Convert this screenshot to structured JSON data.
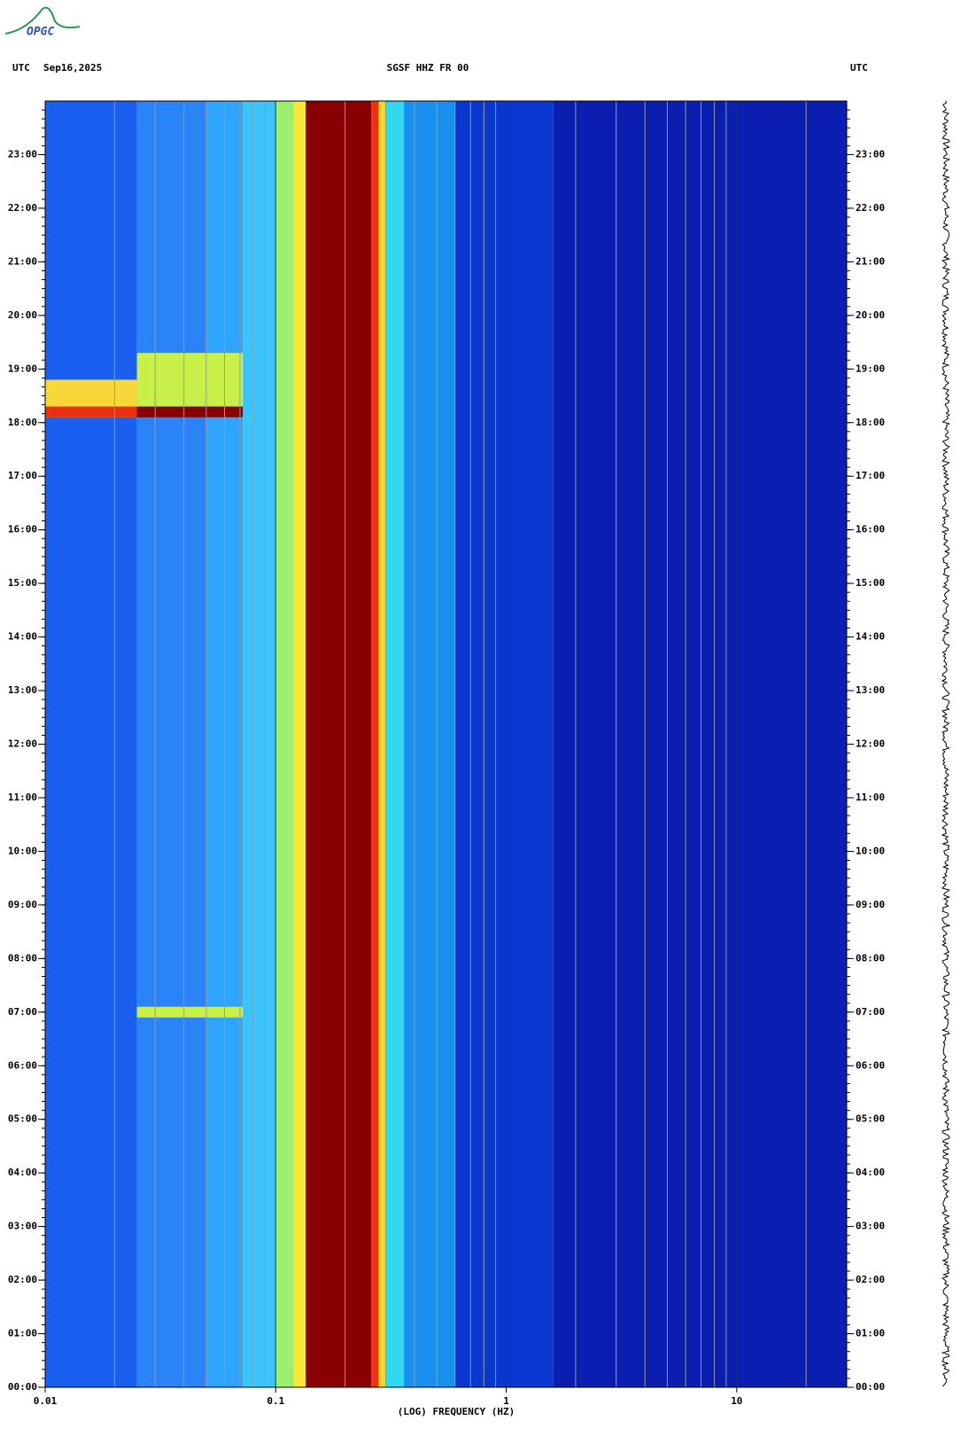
{
  "logo": "OPGC",
  "chart_data": {
    "type": "spectrogram",
    "title": "SGSF HHZ FR 00",
    "timezone_left": "UTC",
    "date": "Sep16,2025",
    "timezone_right": "UTC",
    "xlabel": "(LOG) FREQUENCY (HZ)",
    "xscale": "log",
    "xlim": [
      0.01,
      30
    ],
    "xticks": [
      {
        "value": 0.01,
        "label": "0.01"
      },
      {
        "value": 0.1,
        "label": "0.1"
      },
      1,
      10
    ],
    "ylim": [
      0,
      24
    ],
    "yticks": [
      {
        "value": 0,
        "label": "00:00"
      },
      {
        "value": 1,
        "label": "01:00"
      },
      {
        "value": 2,
        "label": "02:00"
      },
      {
        "value": 3,
        "label": "03:00"
      },
      {
        "value": 4,
        "label": "04:00"
      },
      {
        "value": 5,
        "label": "05:00"
      },
      {
        "value": 6,
        "label": "06:00"
      },
      {
        "value": 7,
        "label": "07:00"
      },
      {
        "value": 8,
        "label": "08:00"
      },
      {
        "value": 9,
        "label": "09:00"
      },
      {
        "value": 10,
        "label": "10:00"
      },
      {
        "value": 11,
        "label": "11:00"
      },
      {
        "value": 12,
        "label": "12:00"
      },
      {
        "value": 13,
        "label": "13:00"
      },
      {
        "value": 14,
        "label": "14:00"
      },
      {
        "value": 15,
        "label": "15:00"
      },
      {
        "value": 16,
        "label": "16:00"
      },
      {
        "value": 17,
        "label": "17:00"
      },
      {
        "value": 18,
        "label": "18:00"
      },
      {
        "value": 19,
        "label": "19:00"
      },
      {
        "value": 20,
        "label": "20:00"
      },
      {
        "value": 21,
        "label": "21:00"
      },
      {
        "value": 22,
        "label": "22:00"
      },
      {
        "value": 23,
        "label": "23:00"
      }
    ],
    "bands": [
      {
        "from": 0.01,
        "to": 0.025,
        "color": "#1a60f0"
      },
      {
        "from": 0.025,
        "to": 0.05,
        "color": "#2a84f8"
      },
      {
        "from": 0.05,
        "to": 0.072,
        "color": "#2ea4fc"
      },
      {
        "from": 0.072,
        "to": 0.1,
        "color": "#3cc4fc"
      },
      {
        "from": 0.1,
        "to": 0.12,
        "color": "#9cf070"
      },
      {
        "from": 0.12,
        "to": 0.135,
        "color": "#f8e838"
      },
      {
        "from": 0.135,
        "to": 0.26,
        "color": "#880000"
      },
      {
        "from": 0.26,
        "to": 0.28,
        "color": "#f03010"
      },
      {
        "from": 0.28,
        "to": 0.3,
        "color": "#f8d830"
      },
      {
        "from": 0.3,
        "to": 0.36,
        "color": "#30d8f0"
      },
      {
        "from": 0.36,
        "to": 0.6,
        "color": "#1890f0"
      },
      {
        "from": 0.6,
        "to": 1.6,
        "color": "#0838d0"
      },
      {
        "from": 1.6,
        "to": 30,
        "color": "#0a1eb0"
      }
    ],
    "events": [
      {
        "from": 0.025,
        "to": 0.072,
        "start": 18.3,
        "end": 19.3,
        "color": "#c8f048"
      },
      {
        "from": 0.01,
        "to": 0.025,
        "start": 18.1,
        "end": 18.8,
        "color": "#f8d838"
      },
      {
        "from": 0.01,
        "to": 0.025,
        "start": 18.1,
        "end": 18.3,
        "color": "#e83010"
      },
      {
        "from": 0.025,
        "to": 0.072,
        "start": 18.1,
        "end": 18.3,
        "color": "#880000"
      },
      {
        "from": 0.025,
        "to": 0.072,
        "start": 6.9,
        "end": 7.1,
        "color": "#c8f048"
      }
    ],
    "grid": true
  }
}
